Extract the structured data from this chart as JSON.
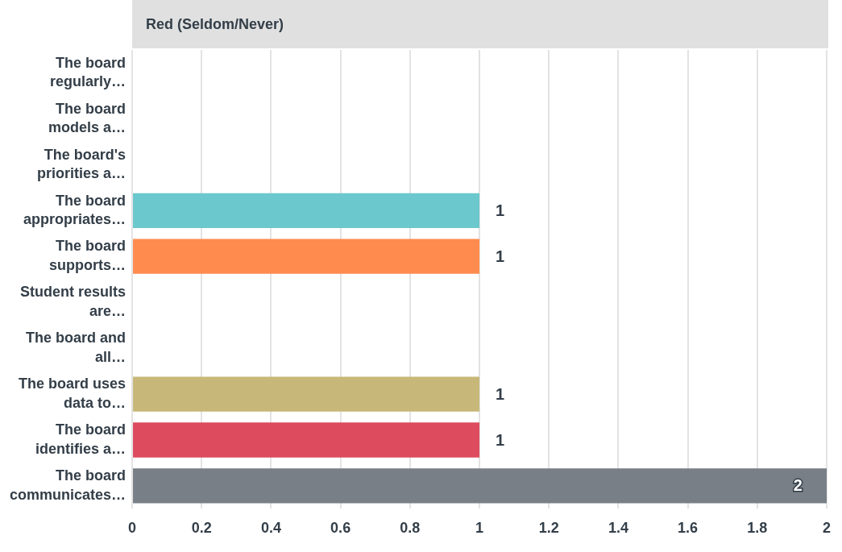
{
  "chart_data": {
    "type": "bar",
    "orientation": "horizontal",
    "title": "Red (Seldom/Never)",
    "categories": [
      "The board regularly…",
      "The board models a…",
      "The board's priorities a…",
      "The board appropriates…",
      "The board supports…",
      "Student results are…",
      "The board and all…",
      "The board uses data to…",
      "The board identifies a…",
      "The board communicates…"
    ],
    "values": [
      0,
      0,
      0,
      1,
      1,
      0,
      0,
      1,
      1,
      2
    ],
    "colors": [
      null,
      null,
      null,
      "#6bc8cd",
      "#ff8b4f",
      null,
      null,
      "#c7b879",
      "#dd4b5e",
      "#787f86"
    ],
    "xlim": [
      0,
      2
    ],
    "xticks": [
      0,
      0.2,
      0.4,
      0.6,
      0.8,
      1,
      1.2,
      1.4,
      1.6,
      1.8,
      2
    ],
    "value_labels": [
      null,
      null,
      null,
      "1",
      "1",
      null,
      null,
      "1",
      "1",
      "2"
    ],
    "grid": "x",
    "legend": false
  }
}
